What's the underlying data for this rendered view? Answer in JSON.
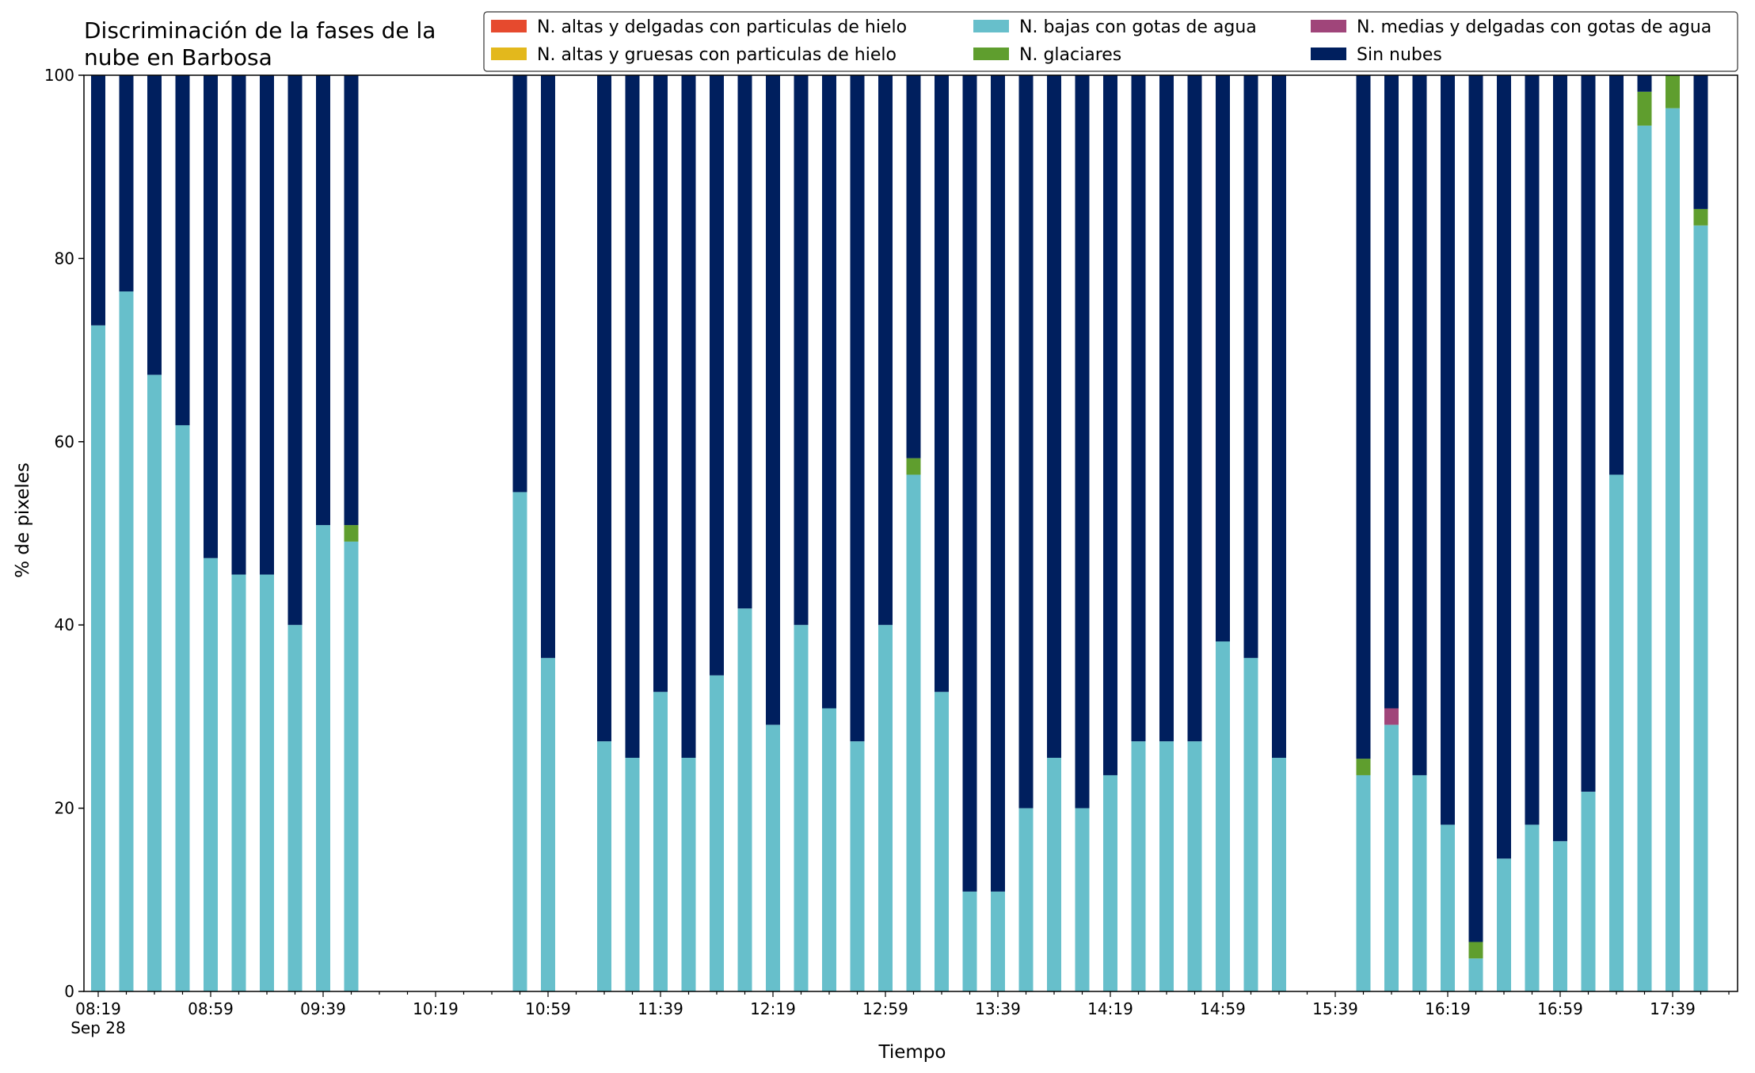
{
  "chart_data": {
    "type": "bar",
    "stacked": true,
    "title": "Discriminación de la fases de la nube en Barbosa",
    "title_lines": [
      "Discriminación de la fases de la",
      "nube en Barbosa"
    ],
    "xlabel": "Tiempo",
    "ylabel": "% de pixeles",
    "ylim": [
      0,
      100
    ],
    "yticks": [
      0,
      20,
      40,
      60,
      80,
      100
    ],
    "xticks": [
      "08:19",
      "08:59",
      "09:39",
      "10:19",
      "10:59",
      "11:39",
      "12:19",
      "12:59",
      "13:39",
      "14:19",
      "14:59",
      "15:39",
      "16:19",
      "16:59",
      "17:39"
    ],
    "xtick_sublabel": "Sep 28",
    "x_start": "08:19",
    "x_interval_minutes": 10,
    "legend_position": "top-right",
    "grid": false,
    "series_meta": [
      {
        "key": "altas_delgadas",
        "name": "N. altas y delgadas con particulas de hielo",
        "color": "#e64a2e"
      },
      {
        "key": "altas_gruesas",
        "name": "N. altas y gruesas con particulas de hielo",
        "color": "#e3b81c"
      },
      {
        "key": "medias_delgadas",
        "name": "N. medias y delgadas con gotas de agua",
        "color": "#a0457a"
      },
      {
        "key": "bajas",
        "name": "N. bajas con gotas de agua",
        "color": "#67bfcb"
      },
      {
        "key": "glaciares",
        "name": "N. glaciares",
        "color": "#5f9e2e"
      },
      {
        "key": "sin_nubes",
        "name": "Sin nubes",
        "color": "#001f5e"
      }
    ],
    "legend_order": [
      "altas_delgadas",
      "altas_gruesas",
      "bajas",
      "glaciares",
      "medias_delgadas",
      "sin_nubes"
    ],
    "stack_order": [
      "bajas",
      "glaciares",
      "medias_delgadas",
      "altas_delgadas",
      "altas_gruesas",
      "sin_nubes"
    ],
    "bars": [
      {
        "time": "08:19",
        "bajas": 72.7,
        "glaciares": 0,
        "medias_delgadas": 0,
        "sin_nubes": 27.3
      },
      {
        "time": "08:29",
        "bajas": 76.4,
        "glaciares": 0,
        "medias_delgadas": 0,
        "sin_nubes": 23.6
      },
      {
        "time": "08:39",
        "bajas": 67.3,
        "glaciares": 0,
        "medias_delgadas": 0,
        "sin_nubes": 32.7
      },
      {
        "time": "08:49",
        "bajas": 61.8,
        "glaciares": 0,
        "medias_delgadas": 0,
        "sin_nubes": 38.2
      },
      {
        "time": "08:59",
        "bajas": 47.3,
        "glaciares": 0,
        "medias_delgadas": 0,
        "sin_nubes": 52.7
      },
      {
        "time": "09:09",
        "bajas": 45.5,
        "glaciares": 0,
        "medias_delgadas": 0,
        "sin_nubes": 54.5
      },
      {
        "time": "09:19",
        "bajas": 45.5,
        "glaciares": 0,
        "medias_delgadas": 0,
        "sin_nubes": 54.5
      },
      {
        "time": "09:29",
        "bajas": 40.0,
        "glaciares": 0,
        "medias_delgadas": 0,
        "sin_nubes": 60.0
      },
      {
        "time": "09:39",
        "bajas": 50.9,
        "glaciares": 0,
        "medias_delgadas": 0,
        "sin_nubes": 49.1
      },
      {
        "time": "09:49",
        "bajas": 49.1,
        "glaciares": 1.8,
        "medias_delgadas": 0,
        "sin_nubes": 49.1
      },
      {
        "time": "10:49",
        "bajas": 54.5,
        "glaciares": 0,
        "medias_delgadas": 0,
        "sin_nubes": 45.5
      },
      {
        "time": "10:59",
        "bajas": 36.4,
        "glaciares": 0,
        "medias_delgadas": 0,
        "sin_nubes": 63.6
      },
      {
        "time": "11:19",
        "bajas": 27.3,
        "glaciares": 0,
        "medias_delgadas": 0,
        "sin_nubes": 72.7
      },
      {
        "time": "11:29",
        "bajas": 25.5,
        "glaciares": 0,
        "medias_delgadas": 0,
        "sin_nubes": 74.5
      },
      {
        "time": "11:39",
        "bajas": 32.7,
        "glaciares": 0,
        "medias_delgadas": 0,
        "sin_nubes": 67.3
      },
      {
        "time": "11:49",
        "bajas": 25.5,
        "glaciares": 0,
        "medias_delgadas": 0,
        "sin_nubes": 74.5
      },
      {
        "time": "11:59",
        "bajas": 34.5,
        "glaciares": 0,
        "medias_delgadas": 0,
        "sin_nubes": 65.5
      },
      {
        "time": "12:09",
        "bajas": 41.8,
        "glaciares": 0,
        "medias_delgadas": 0,
        "sin_nubes": 58.2
      },
      {
        "time": "12:19",
        "bajas": 29.1,
        "glaciares": 0,
        "medias_delgadas": 0,
        "sin_nubes": 70.9
      },
      {
        "time": "12:29",
        "bajas": 40.0,
        "glaciares": 0,
        "medias_delgadas": 0,
        "sin_nubes": 60.0
      },
      {
        "time": "12:39",
        "bajas": 30.9,
        "glaciares": 0,
        "medias_delgadas": 0,
        "sin_nubes": 69.1
      },
      {
        "time": "12:49",
        "bajas": 27.3,
        "glaciares": 0,
        "medias_delgadas": 0,
        "sin_nubes": 72.7
      },
      {
        "time": "12:59",
        "bajas": 40.0,
        "glaciares": 0,
        "medias_delgadas": 0,
        "sin_nubes": 60.0
      },
      {
        "time": "13:09",
        "bajas": 56.4,
        "glaciares": 1.8,
        "medias_delgadas": 0,
        "sin_nubes": 41.8
      },
      {
        "time": "13:19",
        "bajas": 32.7,
        "glaciares": 0,
        "medias_delgadas": 0,
        "sin_nubes": 67.3
      },
      {
        "time": "13:29",
        "bajas": 10.9,
        "glaciares": 0,
        "medias_delgadas": 0,
        "sin_nubes": 89.1
      },
      {
        "time": "13:39",
        "bajas": 10.9,
        "glaciares": 0,
        "medias_delgadas": 0,
        "sin_nubes": 89.1
      },
      {
        "time": "13:49",
        "bajas": 20.0,
        "glaciares": 0,
        "medias_delgadas": 0,
        "sin_nubes": 80.0
      },
      {
        "time": "13:59",
        "bajas": 25.5,
        "glaciares": 0,
        "medias_delgadas": 0,
        "sin_nubes": 74.5
      },
      {
        "time": "14:09",
        "bajas": 20.0,
        "glaciares": 0,
        "medias_delgadas": 0,
        "sin_nubes": 80.0
      },
      {
        "time": "14:19",
        "bajas": 23.6,
        "glaciares": 0,
        "medias_delgadas": 0,
        "sin_nubes": 76.4
      },
      {
        "time": "14:29",
        "bajas": 27.3,
        "glaciares": 0,
        "medias_delgadas": 0,
        "sin_nubes": 72.7
      },
      {
        "time": "14:39",
        "bajas": 27.3,
        "glaciares": 0,
        "medias_delgadas": 0,
        "sin_nubes": 72.7
      },
      {
        "time": "14:49",
        "bajas": 27.3,
        "glaciares": 0,
        "medias_delgadas": 0,
        "sin_nubes": 72.7
      },
      {
        "time": "14:59",
        "bajas": 38.2,
        "glaciares": 0,
        "medias_delgadas": 0,
        "sin_nubes": 61.8
      },
      {
        "time": "15:09",
        "bajas": 36.4,
        "glaciares": 0,
        "medias_delgadas": 0,
        "sin_nubes": 63.6
      },
      {
        "time": "15:19",
        "bajas": 25.5,
        "glaciares": 0,
        "medias_delgadas": 0,
        "sin_nubes": 74.5
      },
      {
        "time": "15:49",
        "bajas": 23.6,
        "glaciares": 1.8,
        "medias_delgadas": 0,
        "sin_nubes": 74.6
      },
      {
        "time": "15:59",
        "bajas": 29.1,
        "glaciares": 0,
        "medias_delgadas": 1.8,
        "sin_nubes": 69.1
      },
      {
        "time": "16:09",
        "bajas": 23.6,
        "glaciares": 0,
        "medias_delgadas": 0,
        "sin_nubes": 76.4
      },
      {
        "time": "16:19",
        "bajas": 18.2,
        "glaciares": 0,
        "medias_delgadas": 0,
        "sin_nubes": 81.8
      },
      {
        "time": "16:29",
        "bajas": 3.6,
        "glaciares": 1.8,
        "medias_delgadas": 0,
        "sin_nubes": 94.6
      },
      {
        "time": "16:39",
        "bajas": 14.5,
        "glaciares": 0,
        "medias_delgadas": 0,
        "sin_nubes": 85.5
      },
      {
        "time": "16:49",
        "bajas": 18.2,
        "glaciares": 0,
        "medias_delgadas": 0,
        "sin_nubes": 81.8
      },
      {
        "time": "16:59",
        "bajas": 16.4,
        "glaciares": 0,
        "medias_delgadas": 0,
        "sin_nubes": 83.6
      },
      {
        "time": "17:09",
        "bajas": 21.8,
        "glaciares": 0,
        "medias_delgadas": 0,
        "sin_nubes": 78.2
      },
      {
        "time": "17:19",
        "bajas": 56.4,
        "glaciares": 0,
        "medias_delgadas": 0,
        "sin_nubes": 43.6
      },
      {
        "time": "17:29",
        "bajas": 94.5,
        "glaciares": 3.7,
        "medias_delgadas": 0,
        "sin_nubes": 1.8
      },
      {
        "time": "17:39",
        "bajas": 96.4,
        "glaciares": 3.6,
        "medias_delgadas": 0,
        "sin_nubes": 0
      },
      {
        "time": "17:49",
        "bajas": 83.6,
        "glaciares": 1.8,
        "medias_delgadas": 0,
        "sin_nubes": 14.6
      }
    ]
  }
}
